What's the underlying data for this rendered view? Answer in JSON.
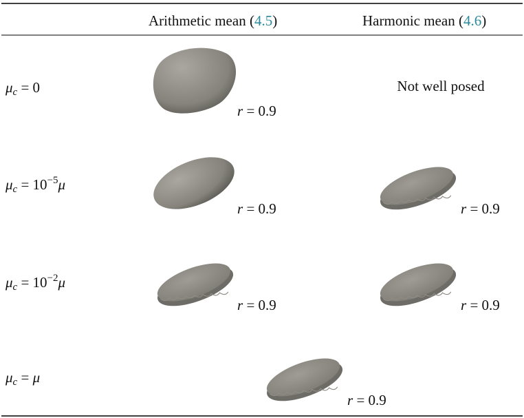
{
  "header": {
    "columns": [
      {
        "parts": [
          "Arithmetic mean (",
          "4.5",
          ")"
        ]
      },
      {
        "parts": [
          "Harmonic mean (",
          "4.6",
          ")"
        ]
      }
    ]
  },
  "rows": [
    {
      "label": [
        {
          "t": "μ"
        },
        {
          "t": "c",
          "pos": "sub"
        },
        {
          "t": " = 0",
          "roman": true
        }
      ],
      "cells": [
        {
          "var": "r",
          "rest": " = 0.9"
        },
        {
          "text": "Not well posed"
        }
      ]
    },
    {
      "label": [
        {
          "t": "μ"
        },
        {
          "t": "c",
          "pos": "sub"
        },
        {
          "t": " = 10",
          "roman": true
        },
        {
          "t": "−5",
          "pos": "sup",
          "roman": true
        },
        {
          "t": "μ"
        }
      ],
      "cells": [
        {
          "var": "r",
          "rest": " = 0.9"
        },
        {
          "var": "r",
          "rest": " = 0.9"
        }
      ]
    },
    {
      "label": [
        {
          "t": "μ"
        },
        {
          "t": "c",
          "pos": "sub"
        },
        {
          "t": " = 10",
          "roman": true
        },
        {
          "t": "−2",
          "pos": "sup",
          "roman": true
        },
        {
          "t": "μ"
        }
      ],
      "cells": [
        {
          "var": "r",
          "rest": " = 0.9"
        },
        {
          "var": "r",
          "rest": " = 0.9"
        }
      ]
    },
    {
      "label": [
        {
          "t": "μ"
        },
        {
          "t": "c",
          "pos": "sub"
        },
        {
          "t": " = ",
          "roman": true
        },
        {
          "t": "μ"
        }
      ],
      "cells": [
        {
          "var": "r",
          "rest": " = 0.9"
        }
      ]
    }
  ]
}
